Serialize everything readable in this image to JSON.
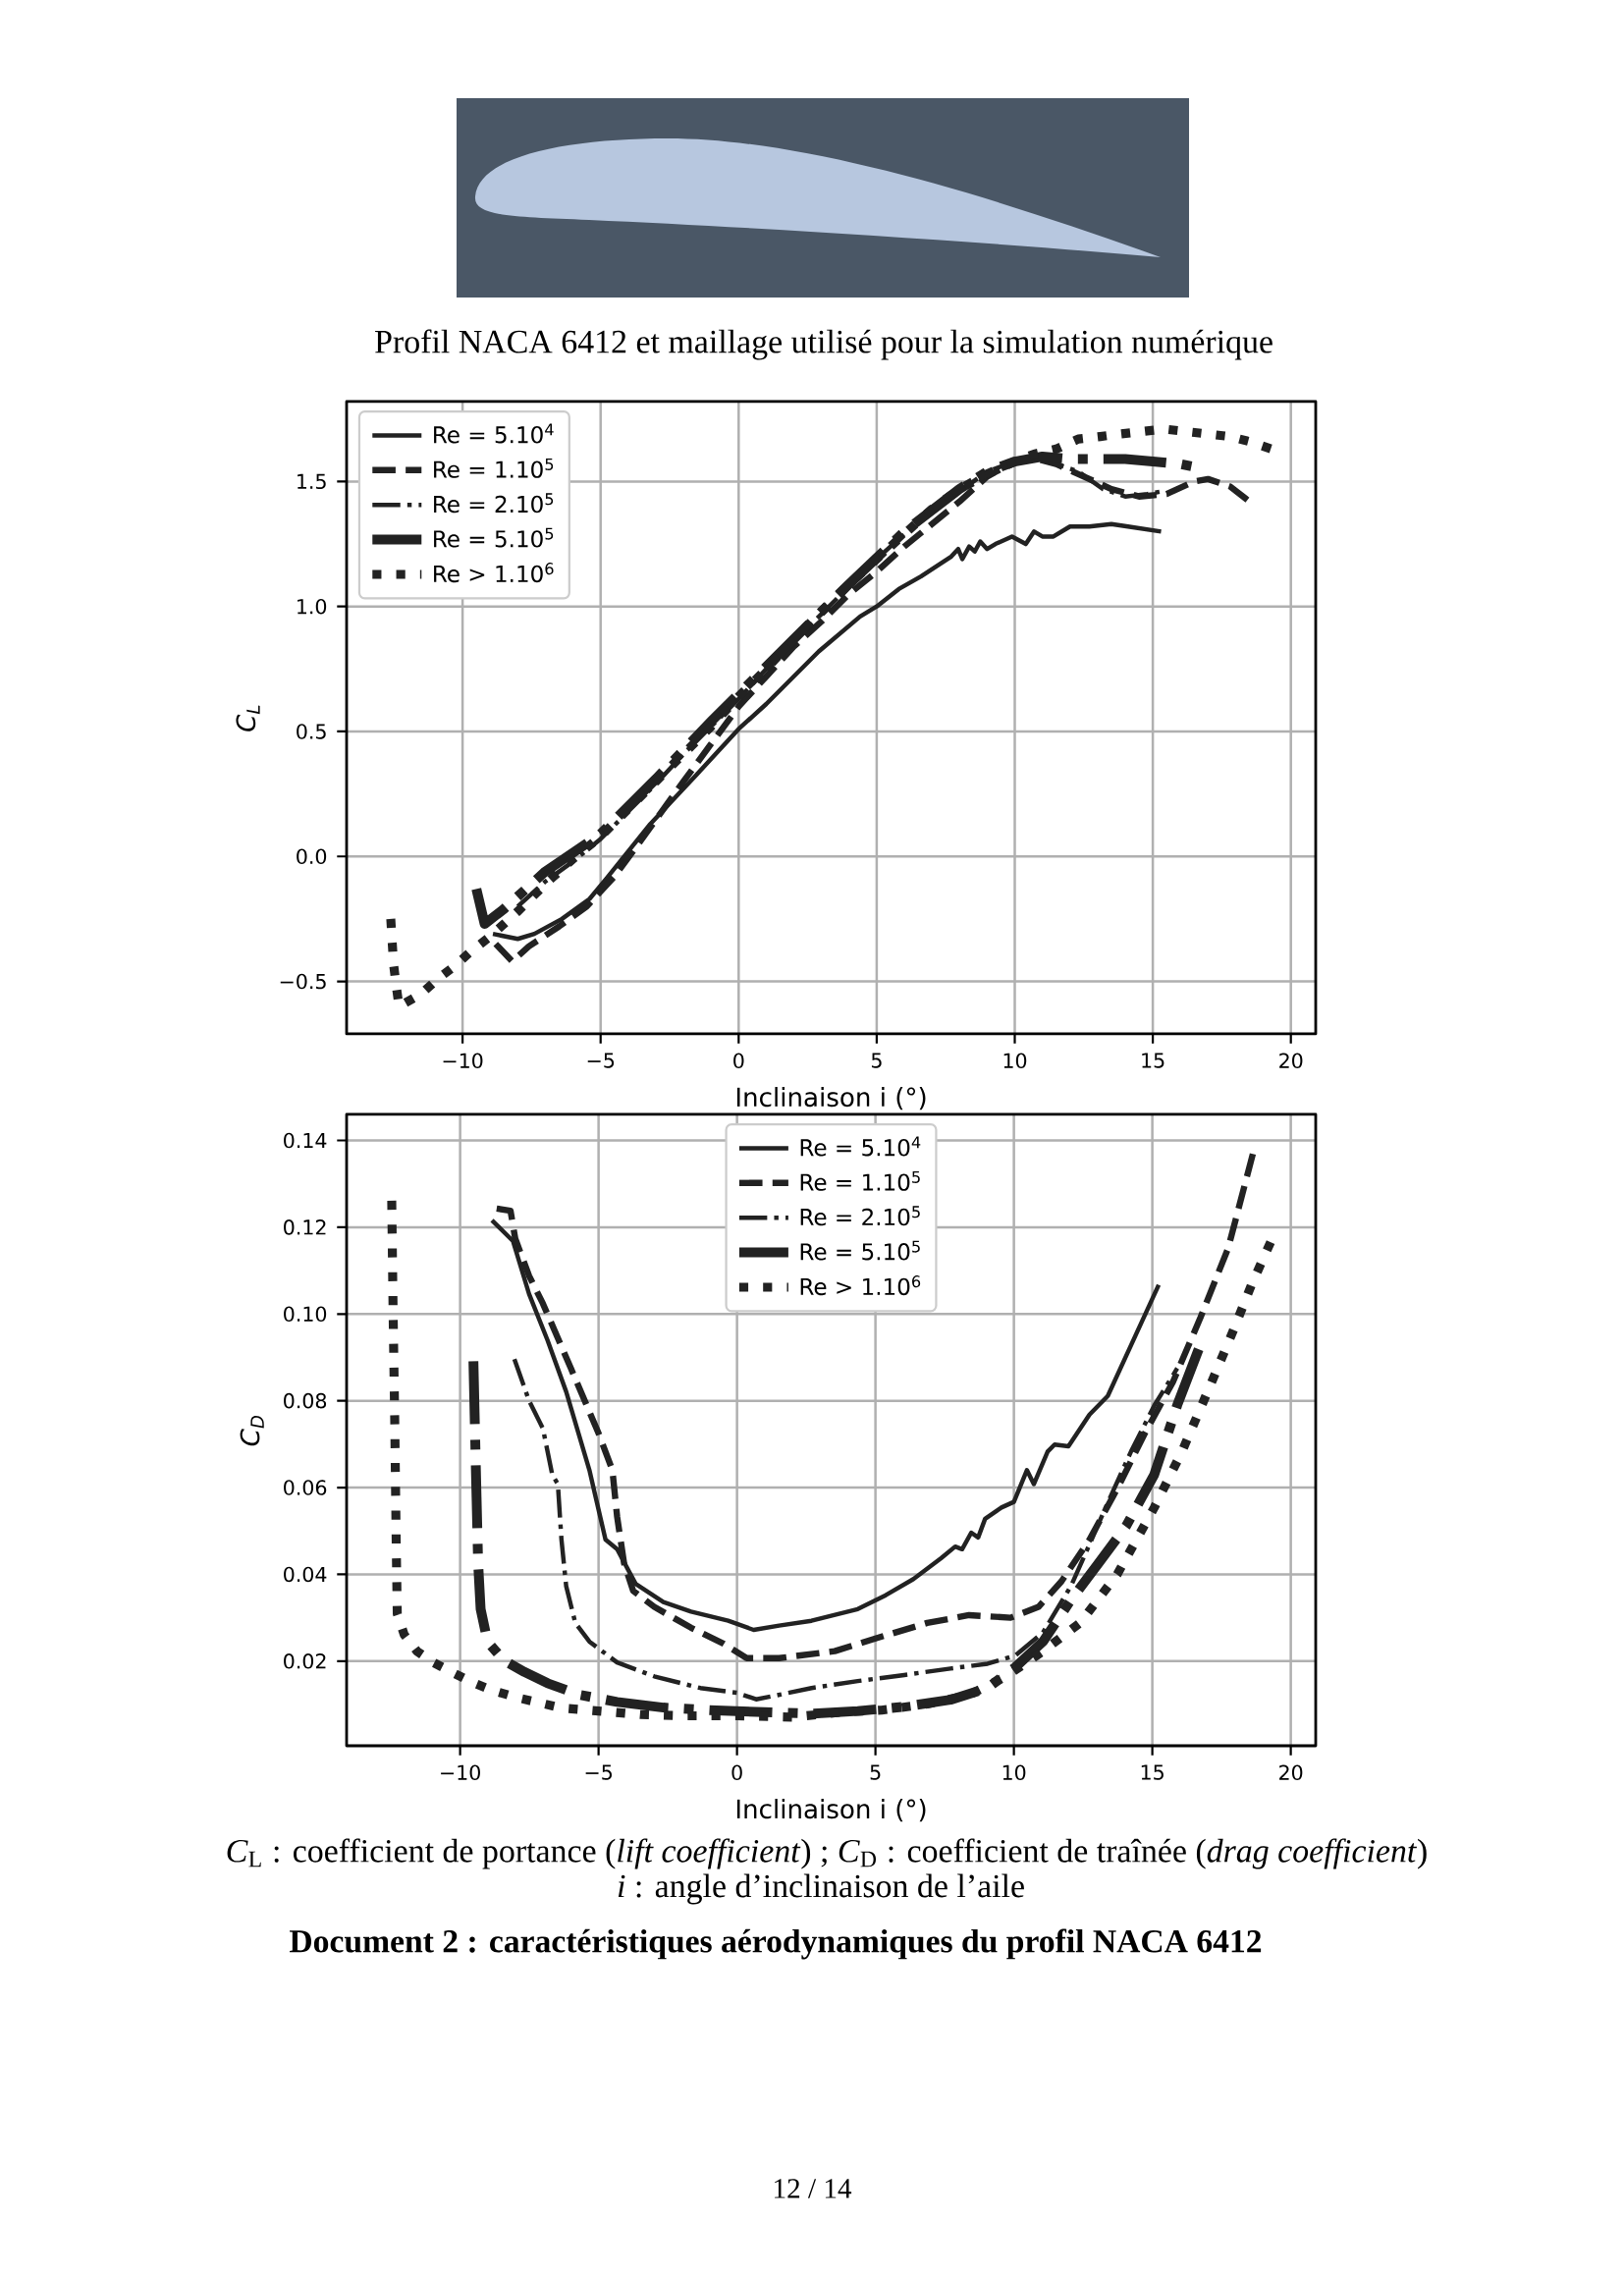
{
  "chart_data": [
    {
      "type": "line",
      "xlabel": "Inclinaison i (°)",
      "ylabel": "C$_{L}$",
      "annotations": [
        "Profil NACA 6412 et maillage utilisé pour la simulation numérique"
      ],
      "xlim": [
        -14.2,
        20.9
      ],
      "ylim": [
        -0.71,
        1.82
      ],
      "xticks": [
        -10,
        -5,
        0,
        5,
        10,
        15,
        20
      ],
      "yticks": [
        -0.5,
        {
          "value": 0,
          "label": "0.0"
        },
        0.5,
        {
          "value": 1,
          "label": "1.0"
        },
        1.5
      ],
      "grid": true,
      "legend": "top left",
      "series": [
        {
          "name": "Re = 5.10$^{4}$",
          "color": "#222222",
          "line_style": "solid",
          "x": [
            -8.9,
            -8.0,
            -7.4,
            -6.4,
            -5.4,
            -4.8,
            -4.0,
            -3.2,
            -1.5,
            0.0,
            1.0,
            2.9,
            4.4,
            5.0,
            5.8,
            6.6,
            7.7,
            7.95,
            8.1,
            8.35,
            8.55,
            8.75,
            9.0,
            9.3,
            9.9,
            10.4,
            10.7,
            11.0,
            11.4,
            12.0,
            12.7,
            13.5,
            14.1,
            15.3
          ],
          "values": [
            -0.31,
            -0.33,
            -0.31,
            -0.25,
            -0.17,
            -0.09,
            0.02,
            0.13,
            0.33,
            0.51,
            0.61,
            0.82,
            0.96,
            1.0,
            1.07,
            1.12,
            1.2,
            1.23,
            1.19,
            1.24,
            1.22,
            1.26,
            1.23,
            1.25,
            1.28,
            1.25,
            1.3,
            1.28,
            1.28,
            1.32,
            1.32,
            1.33,
            1.32,
            1.3
          ]
        },
        {
          "name": "Re = 1.10$^{5}$",
          "color": "#222222",
          "line_style": "dashed",
          "x": [
            -8.8,
            -8.2,
            -7.6,
            -6.5,
            -5.5,
            -4.5,
            -3.5,
            -2.0,
            -1.0,
            0.0,
            1.0,
            2.0,
            3.0,
            4.0,
            5.0,
            6.0,
            7.0,
            8.0,
            9.0,
            10.0,
            10.8,
            11.5,
            12.5,
            13.5,
            14.5,
            15.5,
            16.5,
            17.0,
            17.8,
            18.5
          ],
          "values": [
            -0.35,
            -0.42,
            -0.36,
            -0.28,
            -0.2,
            -0.08,
            0.07,
            0.3,
            0.45,
            0.6,
            0.72,
            0.84,
            0.94,
            1.05,
            1.14,
            1.24,
            1.33,
            1.42,
            1.52,
            1.58,
            1.59,
            1.57,
            1.52,
            1.47,
            1.44,
            1.45,
            1.5,
            1.51,
            1.48,
            1.42
          ]
        },
        {
          "name": "Re = 2.10$^{5}$",
          "color": "#222222",
          "line_style": "dashdot",
          "x": [
            -8.0,
            -7.0,
            -6.0,
            -5.0,
            -4.0,
            -3.0,
            -2.0,
            -1.0,
            0.0,
            1.0,
            2.0,
            3.0,
            4.0,
            5.0,
            6.0,
            7.0,
            8.0,
            9.0,
            10.0,
            10.8,
            11.5,
            12.3,
            13.2,
            14.0,
            14.8,
            15.3
          ],
          "values": [
            -0.2,
            -0.1,
            -0.02,
            0.07,
            0.18,
            0.29,
            0.41,
            0.52,
            0.63,
            0.75,
            0.86,
            0.97,
            1.08,
            1.19,
            1.29,
            1.38,
            1.46,
            1.54,
            1.58,
            1.6,
            1.57,
            1.54,
            1.47,
            1.44,
            1.45,
            1.46
          ]
        },
        {
          "name": "Re = 5.10$^{5}$",
          "color": "#222222",
          "line_style": "dashdot",
          "x": [
            -9.5,
            -9.2,
            -8.5,
            -7.0,
            -5.0,
            -3.0,
            -1.0,
            0.0,
            2.0,
            4.0,
            6.0,
            8.0,
            9.0,
            10.0,
            11.0,
            12.0,
            13.0,
            14.0,
            15.0,
            16.0,
            16.9
          ],
          "values": [
            -0.13,
            -0.27,
            -0.21,
            -0.06,
            0.09,
            0.31,
            0.54,
            0.65,
            0.87,
            1.09,
            1.3,
            1.47,
            1.54,
            1.58,
            1.6,
            1.59,
            1.59,
            1.59,
            1.58,
            1.57,
            1.55
          ]
        },
        {
          "name": "Re > 1.10$^{6}$",
          "color": "#222222",
          "line_style": "dotted",
          "x": [
            -12.6,
            -12.5,
            -12.4,
            -12.3,
            -11.5,
            -10.9,
            -10.3,
            -9.7,
            -9.0,
            -8.0,
            -7.0,
            -6.0,
            -5.0,
            -4.0,
            -3.0,
            -2.0,
            -1.0,
            0.0,
            1.0,
            2.0,
            3.0,
            4.0,
            5.0,
            6.0,
            7.0,
            8.0,
            9.0,
            10.0,
            10.7,
            11.5,
            12.3,
            13.1,
            13.8,
            14.6,
            15.4,
            16.2,
            17.0,
            17.8,
            18.5,
            19.3
          ],
          "values": [
            -0.25,
            -0.43,
            -0.52,
            -0.6,
            -0.55,
            -0.49,
            -0.44,
            -0.38,
            -0.32,
            -0.22,
            -0.11,
            -0.01,
            0.08,
            0.19,
            0.3,
            0.41,
            0.52,
            0.64,
            0.75,
            0.87,
            0.98,
            1.09,
            1.19,
            1.29,
            1.39,
            1.47,
            1.53,
            1.58,
            1.61,
            1.63,
            1.67,
            1.68,
            1.69,
            1.7,
            1.71,
            1.7,
            1.69,
            1.68,
            1.66,
            1.63
          ]
        }
      ]
    },
    {
      "type": "line",
      "xlabel": "Inclinaison i (°)",
      "ylabel": "C$_{D}$",
      "annotations": [
        "*C*$_{L}$ : coefficient de portance (*lift coefficient*) ; *C*$_{D}$ : coefficient de traînée (*drag coefficient*)",
        "*i* : angle d’inclinaison de l’aile",
        "Document 2 : caractéristiques aérodynamiques du profil NACA 6412",
        "12 / 14"
      ],
      "xlim": [
        -14.1,
        20.9
      ],
      "ylim": [
        0.0005,
        0.146
      ],
      "xticks": [
        -10,
        -5,
        0,
        5,
        10,
        15,
        20
      ],
      "yticks": [
        0.02,
        0.04,
        0.06,
        0.08,
        {
          "value": 0.1,
          "label": "0.10"
        },
        0.12,
        0.14
      ],
      "grid": true,
      "legend": "top",
      "series": [
        {
          "name": "Re = 5.10$^{4}$",
          "color": "#222222",
          "line_style": "solid",
          "x": [
            -8.85,
            -8.09,
            -7.51,
            -6.84,
            -6.17,
            -5.33,
            -4.75,
            -4.33,
            -3.66,
            -2.66,
            -1.66,
            -0.32,
            0.6,
            1.52,
            2.69,
            4.36,
            5.37,
            6.37,
            7.37,
            7.88,
            8.13,
            8.46,
            8.71,
            8.96,
            9.55,
            10.0,
            10.47,
            10.72,
            11.22,
            11.47,
            11.97,
            12.73,
            13.39,
            14.23,
            15.23
          ],
          "values": [
            0.1216,
            0.1168,
            0.1046,
            0.0939,
            0.0821,
            0.064,
            0.048,
            0.0458,
            0.0378,
            0.0336,
            0.0314,
            0.0293,
            0.0272,
            0.0282,
            0.0293,
            0.032,
            0.0352,
            0.0389,
            0.0437,
            0.0464,
            0.0458,
            0.0496,
            0.0485,
            0.0528,
            0.0554,
            0.0567,
            0.064,
            0.0608,
            0.0683,
            0.0699,
            0.0695,
            0.0768,
            0.0811,
            0.0928,
            0.1067
          ]
        },
        {
          "name": "Re = 1.10$^{5}$",
          "color": "#222222",
          "line_style": "dashed",
          "x": [
            -8.68,
            -8.18,
            -8.01,
            -7.51,
            -7.01,
            -6.0,
            -5.0,
            -4.5,
            -4.33,
            -4.08,
            -3.75,
            -2.99,
            -1.66,
            -0.48,
            0.35,
            1.52,
            3.53,
            5.2,
            6.87,
            8.38,
            9.88,
            10.89,
            11.72,
            12.73,
            13.73,
            14.73,
            15.74,
            16.74,
            17.74,
            18.66
          ],
          "values": [
            0.1243,
            0.1238,
            0.1174,
            0.1088,
            0.1024,
            0.0875,
            0.0725,
            0.064,
            0.0533,
            0.0426,
            0.0362,
            0.0325,
            0.0277,
            0.024,
            0.0207,
            0.0207,
            0.0223,
            0.0256,
            0.0288,
            0.0306,
            0.03,
            0.0325,
            0.0384,
            0.048,
            0.0597,
            0.0725,
            0.0843,
            0.0992,
            0.1152,
            0.1376
          ]
        },
        {
          "name": "Re = 2.10$^{5}$",
          "color": "#222222",
          "line_style": "dashdot",
          "x": [
            -8.04,
            -7.51,
            -7.01,
            -6.67,
            -6.47,
            -6.34,
            -6.17,
            -5.84,
            -5.33,
            -4.33,
            -2.99,
            -1.32,
            0.0,
            0.69,
            1.5,
            2.69,
            4.36,
            6.04,
            7.71,
            9.05,
            10.05,
            11.05,
            12.06,
            12.73,
            13.39,
            14.23,
            15.07,
            15.9
          ],
          "values": [
            0.0896,
            0.08,
            0.0736,
            0.0629,
            0.0608,
            0.048,
            0.0373,
            0.0288,
            0.0245,
            0.0197,
            0.0165,
            0.0138,
            0.0127,
            0.0112,
            0.0122,
            0.0138,
            0.0154,
            0.0168,
            0.0183,
            0.0194,
            0.0213,
            0.0266,
            0.0373,
            0.0469,
            0.0565,
            0.0683,
            0.0789,
            0.0875
          ]
        },
        {
          "name": "Re = 5.10$^{5}$",
          "color": "#222222",
          "line_style": "dashdot",
          "x": [
            -9.52,
            -9.43,
            -9.35,
            -9.26,
            -9.01,
            -8.43,
            -7.68,
            -6.84,
            -5.67,
            -4.33,
            -2.66,
            -0.99,
            0.69,
            2.69,
            4.36,
            6.04,
            7.71,
            9.05,
            10.05,
            11.05,
            12.06,
            13.06,
            14.06,
            15.07,
            15.9,
            16.74
          ],
          "values": [
            0.0891,
            0.064,
            0.0426,
            0.032,
            0.0245,
            0.0202,
            0.0175,
            0.0149,
            0.0122,
            0.0106,
            0.0093,
            0.0087,
            0.0083,
            0.0079,
            0.0085,
            0.0095,
            0.0111,
            0.0138,
            0.0186,
            0.0245,
            0.0341,
            0.0426,
            0.0512,
            0.063,
            0.079,
            0.093
          ]
        },
        {
          "name": "Re > 1.10$^{6}$",
          "color": "#222222",
          "line_style": "dotted",
          "x": [
            -12.47,
            -12.42,
            -12.36,
            -12.31,
            -12.27,
            -12.02,
            -11.56,
            -10.97,
            -10.22,
            -9.55,
            -8.85,
            -8.01,
            -7.26,
            -6.34,
            -5.0,
            -3.49,
            -1.82,
            0.0,
            2.02,
            3.86,
            5.22,
            6.87,
            8.38,
            9.72,
            11.05,
            12.39,
            13.73,
            15.07,
            16.07,
            17.07,
            17.91,
            18.58,
            19.33
          ],
          "values": [
            0.1261,
            0.1003,
            0.0747,
            0.048,
            0.0309,
            0.0261,
            0.0223,
            0.0197,
            0.0172,
            0.0151,
            0.0133,
            0.0117,
            0.0106,
            0.0092,
            0.0085,
            0.0077,
            0.0074,
            0.0074,
            0.0071,
            0.0083,
            0.0087,
            0.0101,
            0.0122,
            0.0165,
            0.0223,
            0.0288,
            0.04,
            0.0554,
            0.0683,
            0.0832,
            0.096,
            0.1067,
            0.1174
          ]
        }
      ]
    }
  ]
}
